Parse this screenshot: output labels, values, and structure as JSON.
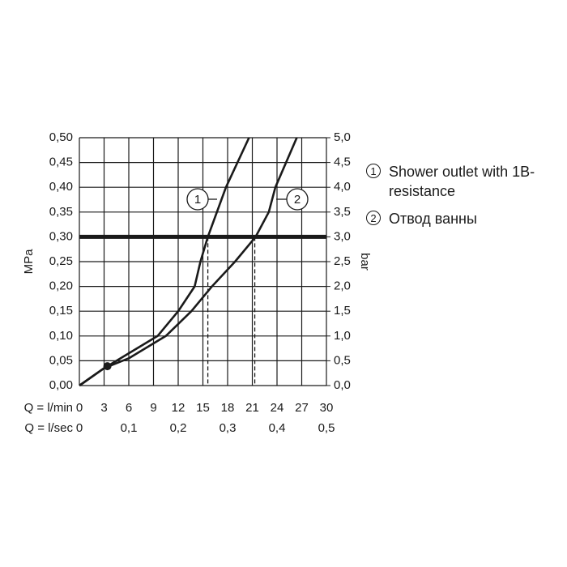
{
  "chart_data": {
    "type": "line",
    "xlabel": "Q = l/min",
    "x2label": "Q = l/sec",
    "ylabel": "MPa",
    "y2label": "bar",
    "xlim": [
      0,
      30
    ],
    "xticks": [
      0,
      3,
      6,
      9,
      12,
      15,
      18,
      21,
      24,
      27,
      30
    ],
    "x2lim": [
      0,
      0.5
    ],
    "x2ticks": [
      {
        "value": 0,
        "label": "0"
      },
      {
        "value": 0.1,
        "label": "0,1"
      },
      {
        "value": 0.2,
        "label": "0,2"
      },
      {
        "value": 0.3,
        "label": "0,3"
      },
      {
        "value": 0.4,
        "label": "0,4"
      },
      {
        "value": 0.5,
        "label": "0,5"
      }
    ],
    "ylim": [
      0,
      0.5
    ],
    "yticks": [
      {
        "value": 0,
        "label": "0,00"
      },
      {
        "value": 0.05,
        "label": "0,05"
      },
      {
        "value": 0.1,
        "label": "0,10"
      },
      {
        "value": 0.15,
        "label": "0,15"
      },
      {
        "value": 0.2,
        "label": "0,20"
      },
      {
        "value": 0.25,
        "label": "0,25"
      },
      {
        "value": 0.3,
        "label": "0,30"
      },
      {
        "value": 0.35,
        "label": "0,35"
      },
      {
        "value": 0.4,
        "label": "0,40"
      },
      {
        "value": 0.45,
        "label": "0,45"
      },
      {
        "value": 0.5,
        "label": "0,50"
      }
    ],
    "y2lim": [
      0,
      5
    ],
    "y2ticks": [
      {
        "value": 0,
        "label": "0,0"
      },
      {
        "value": 0.5,
        "label": "0,5"
      },
      {
        "value": 1,
        "label": "1,0"
      },
      {
        "value": 1.5,
        "label": "1,5"
      },
      {
        "value": 2,
        "label": "2,0"
      },
      {
        "value": 2.5,
        "label": "2,5"
      },
      {
        "value": 3,
        "label": "3,0"
      },
      {
        "value": 3.5,
        "label": "3,5"
      },
      {
        "value": 4,
        "label": "4,0"
      },
      {
        "value": 4.5,
        "label": "4,5"
      },
      {
        "value": 5,
        "label": "5,0"
      }
    ],
    "grid": true,
    "reference_y": 0.3,
    "dashed_x": [
      15.6,
      21.3
    ],
    "point": {
      "x": 3.4,
      "y": 0.039
    },
    "series": [
      {
        "name": "Shower outlet with 1B-resistance",
        "marker_label": "1",
        "color": "#1a1a1a",
        "x": [
          0,
          3,
          5.5,
          9.5,
          12,
          14,
          14.7,
          15.6,
          17.8,
          20.6
        ],
        "values": [
          0,
          0.035,
          0.06,
          0.1,
          0.15,
          0.2,
          0.25,
          0.3,
          0.4,
          0.5
        ]
      },
      {
        "name": "Отвод ванны",
        "marker_label": "2",
        "color": "#1a1a1a",
        "x": [
          0,
          3,
          6,
          10.5,
          13.6,
          16.1,
          18.9,
          21.4,
          23,
          23.8,
          26.4
        ],
        "values": [
          0,
          0.035,
          0.055,
          0.1,
          0.15,
          0.2,
          0.25,
          0.3,
          0.35,
          0.4,
          0.5
        ]
      }
    ]
  }
}
